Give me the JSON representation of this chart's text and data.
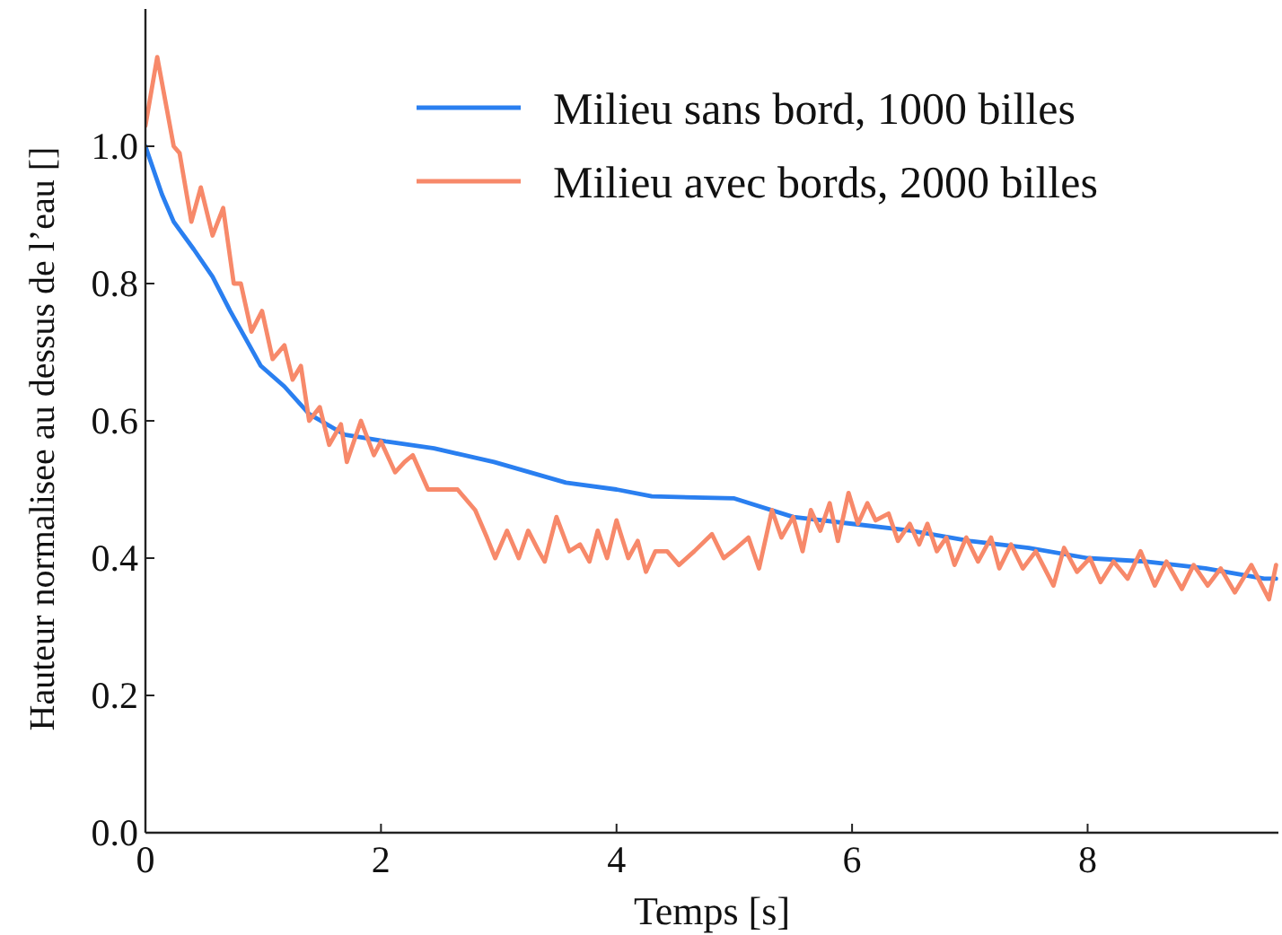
{
  "chart_data": {
    "type": "line",
    "xlabel": "Temps [s]",
    "ylabel": "Hauteur normalisee au dessus de l’eau []",
    "xlim": [
      0,
      9.62
    ],
    "ylim": [
      0,
      1.2
    ],
    "xticks": [
      0,
      2,
      4,
      6,
      8
    ],
    "yticks": [
      {
        "value": 0,
        "label": "0.0"
      },
      0.2,
      0.4,
      0.6,
      0.8,
      {
        "value": 1,
        "label": "1.0"
      }
    ],
    "grid": false,
    "legend": "top right",
    "marker": "none",
    "line_style": "solid",
    "series": [
      {
        "name": "Milieu sans bord, 1000 billes",
        "color": "#2a7ff0",
        "x": [
          0,
          0.14,
          0.24,
          0.41,
          0.57,
          0.72,
          0.85,
          0.98,
          1.18,
          1.39,
          1.69,
          2.04,
          2.45,
          2.96,
          3.57,
          4,
          4.3,
          5,
          5.5,
          6,
          6.5,
          7,
          7.5,
          8,
          8.5,
          9,
          9.5,
          9.6
        ],
        "values": [
          1.0,
          0.93,
          0.89,
          0.85,
          0.81,
          0.76,
          0.72,
          0.68,
          0.65,
          0.61,
          0.58,
          0.57,
          0.56,
          0.54,
          0.51,
          0.5,
          0.49,
          0.487,
          0.46,
          0.45,
          0.44,
          0.425,
          0.415,
          0.4,
          0.395,
          0.385,
          0.37,
          0.37
        ]
      },
      {
        "name": "Milieu avec bords, 2000 billes",
        "color": "#f7896a",
        "x": [
          0,
          0.1,
          0.24,
          0.29,
          0.39,
          0.47,
          0.57,
          0.66,
          0.75,
          0.81,
          0.9,
          0.99,
          1.08,
          1.18,
          1.25,
          1.32,
          1.39,
          1.48,
          1.56,
          1.66,
          1.71,
          1.83,
          1.94,
          2.0,
          2.12,
          2.2,
          2.27,
          2.4,
          2.53,
          2.65,
          2.8,
          2.9,
          2.97,
          3.07,
          3.17,
          3.25,
          3.34,
          3.39,
          3.49,
          3.6,
          3.69,
          3.77,
          3.84,
          3.92,
          4.0,
          4.1,
          4.18,
          4.25,
          4.33,
          4.43,
          4.53,
          4.66,
          4.81,
          4.91,
          5.02,
          5.12,
          5.21,
          5.32,
          5.4,
          5.5,
          5.58,
          5.65,
          5.73,
          5.81,
          5.88,
          5.97,
          6.05,
          6.13,
          6.2,
          6.31,
          6.39,
          6.49,
          6.57,
          6.64,
          6.72,
          6.8,
          6.87,
          6.97,
          7.07,
          7.18,
          7.25,
          7.35,
          7.45,
          7.56,
          7.71,
          7.8,
          7.91,
          8.02,
          8.11,
          8.22,
          8.34,
          8.45,
          8.57,
          8.67,
          8.8,
          8.9,
          9.02,
          9.13,
          9.25,
          9.39,
          9.54,
          9.6
        ],
        "values": [
          1.03,
          1.13,
          1.0,
          0.99,
          0.89,
          0.94,
          0.87,
          0.91,
          0.8,
          0.8,
          0.73,
          0.76,
          0.69,
          0.71,
          0.66,
          0.68,
          0.6,
          0.62,
          0.565,
          0.595,
          0.54,
          0.6,
          0.55,
          0.57,
          0.525,
          0.54,
          0.55,
          0.5,
          0.5,
          0.5,
          0.47,
          0.43,
          0.4,
          0.44,
          0.4,
          0.44,
          0.41,
          0.395,
          0.46,
          0.41,
          0.42,
          0.395,
          0.44,
          0.4,
          0.455,
          0.4,
          0.425,
          0.38,
          0.41,
          0.41,
          0.39,
          0.41,
          0.435,
          0.4,
          0.415,
          0.43,
          0.385,
          0.47,
          0.43,
          0.46,
          0.41,
          0.47,
          0.44,
          0.48,
          0.425,
          0.495,
          0.45,
          0.48,
          0.455,
          0.465,
          0.425,
          0.45,
          0.42,
          0.45,
          0.41,
          0.43,
          0.39,
          0.43,
          0.395,
          0.43,
          0.385,
          0.42,
          0.385,
          0.41,
          0.36,
          0.415,
          0.38,
          0.4,
          0.365,
          0.395,
          0.37,
          0.41,
          0.36,
          0.395,
          0.355,
          0.39,
          0.36,
          0.385,
          0.35,
          0.39,
          0.34,
          0.39
        ]
      }
    ]
  }
}
